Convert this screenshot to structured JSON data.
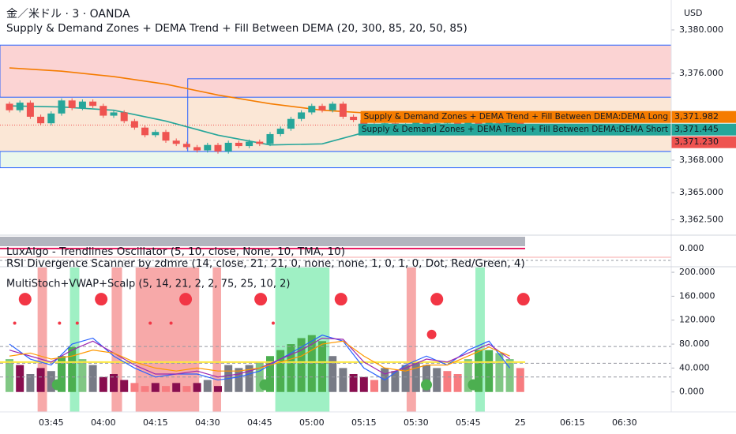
{
  "header": {
    "symbol": "金／米ドル · 3 · OANDA",
    "currency": "USD"
  },
  "chart_data": [
    {
      "type": "candlestick",
      "title": "Supply & Demand Zones + DEMA Trend + Fill Between DEMA (20, 300, 85, 20, 50, 85)",
      "open": [
        3373.2,
        3372.6,
        3373.3,
        3372.0,
        3371.4,
        3372.3,
        3373.5,
        3372.8,
        3373.4,
        3373.0,
        3372.1,
        3372.4,
        3371.6,
        3371.0,
        3370.3,
        3370.6,
        3369.8,
        3369.5,
        3369.2,
        3368.9,
        3369.4,
        3368.8,
        3369.6,
        3369.3,
        3369.7,
        3369.5,
        3370.4,
        3370.9,
        3371.8,
        3372.4,
        3373.0,
        3372.6,
        3373.2,
        3372.0,
        3371.7,
        3371.3,
        3370.6,
        3371.4,
        3370.8,
        3371.2,
        3371.5,
        3371.0,
        3371.4,
        3371.9,
        3371.2,
        3371.6,
        3371.3,
        3371.9,
        3371.4,
        3371.6
      ],
      "high": [
        3373.4,
        3373.5,
        3373.5,
        3372.2,
        3372.5,
        3373.7,
        3373.7,
        3373.6,
        3373.6,
        3373.2,
        3372.6,
        3372.6,
        3371.8,
        3371.2,
        3370.8,
        3370.8,
        3370.0,
        3369.7,
        3369.4,
        3369.6,
        3369.6,
        3369.8,
        3369.8,
        3369.9,
        3369.9,
        3370.6,
        3371.1,
        3372.0,
        3372.6,
        3373.2,
        3373.2,
        3373.4,
        3373.4,
        3372.2,
        3371.9,
        3371.5,
        3371.6,
        3371.6,
        3371.4,
        3371.7,
        3371.7,
        3371.6,
        3372.1,
        3372.1,
        3371.8,
        3371.8,
        3372.1,
        3372.1,
        3371.8,
        3371.8
      ],
      "low": [
        3372.4,
        3372.4,
        3371.8,
        3371.2,
        3371.2,
        3372.1,
        3372.6,
        3372.6,
        3372.8,
        3371.9,
        3371.9,
        3371.4,
        3370.8,
        3370.1,
        3370.1,
        3369.6,
        3369.3,
        3369.0,
        3368.7,
        3368.7,
        3368.6,
        3368.6,
        3369.1,
        3369.1,
        3369.3,
        3369.3,
        3370.2,
        3370.7,
        3371.6,
        3372.2,
        3372.4,
        3372.4,
        3371.8,
        3371.5,
        3371.1,
        3370.4,
        3370.4,
        3370.6,
        3370.6,
        3371.0,
        3370.8,
        3370.8,
        3371.2,
        3371.0,
        3371.0,
        3371.1,
        3371.1,
        3371.2,
        3371.2,
        3371.0
      ],
      "close": [
        3372.6,
        3373.3,
        3372.0,
        3371.4,
        3372.3,
        3373.5,
        3372.8,
        3373.4,
        3373.0,
        3372.1,
        3372.4,
        3371.6,
        3371.0,
        3370.3,
        3370.6,
        3369.8,
        3369.5,
        3369.2,
        3368.9,
        3369.4,
        3368.8,
        3369.6,
        3369.3,
        3369.7,
        3369.5,
        3370.4,
        3370.9,
        3371.8,
        3372.4,
        3373.0,
        3372.6,
        3373.2,
        3372.0,
        3371.7,
        3371.3,
        3370.6,
        3371.4,
        3370.8,
        3371.2,
        3371.5,
        3371.0,
        3371.4,
        3371.9,
        3371.2,
        3371.6,
        3371.3,
        3371.9,
        3371.4,
        3371.6,
        3371.23
      ],
      "up_color": "#26a69a",
      "down_color": "#ef5350",
      "ylim": [
        3361.16,
        3382.76
      ],
      "yticks": [
        {
          "value": 3380,
          "label": "3,380.000"
        },
        {
          "value": 3376,
          "label": "3,376.000"
        },
        {
          "value": 3368,
          "label": "3,368.000"
        },
        {
          "value": 3365,
          "label": "3,365.000"
        },
        {
          "value": 3362.5,
          "label": "3,362.500"
        }
      ],
      "zones": [
        {
          "top": 3373.8,
          "bottom": 3368.8,
          "from": -0.91,
          "fill": "#fbe7d6",
          "stroke": "none"
        },
        {
          "top": 3378.6,
          "bottom": 3373.8,
          "from": -0.91,
          "fill": "#fbd3d3",
          "stroke": "#2962ff"
        },
        {
          "top": 3368.8,
          "bottom": 3367.3,
          "from": -0.91,
          "fill": "#eaf7ec",
          "stroke": "#2962ff"
        },
        {
          "top": 3375.5,
          "bottom": 3368.8,
          "from": 17.1,
          "fill": "none",
          "stroke": "#2962ff"
        }
      ],
      "lines": [
        {
          "name": "Supply & Demand Zones + DEMA Trend + Fill Between DEMA:DEMA Long",
          "color": "#f57c00",
          "x": [
            0,
            5,
            10,
            15,
            20,
            25,
            30,
            35,
            40,
            45,
            49
          ],
          "values": [
            3376.5,
            3376.2,
            3375.7,
            3375.0,
            3374.0,
            3373.2,
            3372.6,
            3372.3,
            3372.1,
            3372.0,
            3372.0
          ],
          "last": {
            "value": 3371.982,
            "label": "3,371.982"
          }
        },
        {
          "name": "Supply & Demand Zones + DEMA Trend + Fill Between DEMA:DEMA Short",
          "color": "#26a69a",
          "x": [
            0,
            5,
            10,
            15,
            20,
            25,
            30,
            35,
            40,
            45,
            49
          ],
          "values": [
            3373.0,
            3372.9,
            3372.6,
            3371.6,
            3370.3,
            3369.4,
            3369.5,
            3370.8,
            3371.3,
            3371.3,
            3371.4
          ],
          "last": {
            "value": 3371.445,
            "label": "3,371.445"
          }
        }
      ],
      "last_price": {
        "value": 3371.23,
        "label": "3,371.230"
      },
      "x_labels": [
        "03:45",
        "04:00",
        "04:15",
        "04:30",
        "04:45",
        "05:00",
        "05:15",
        "05:30",
        "05:45",
        "25",
        "06:15",
        "06:30"
      ]
    },
    {
      "type": "oscillator",
      "title": "LuxAlgo - Trendlines Oscillator (5, 10, close, None, 10, TMA, 10)",
      "ylim": [
        -1,
        1
      ],
      "yticks": [
        {
          "value": 0,
          "label": "0.000"
        }
      ],
      "color": "#e91e63"
    },
    {
      "type": "oscillator",
      "title": "RSI Divergence Scanner by zdmre (14, close, 21, 21, 0, none, none, 1, 0, 1, 0, Dot, Red/Green, 4)"
    },
    {
      "type": "multistoch",
      "title": "MultiStoch+VWAP+Scalp (5, 14, 21, 2, 2, 75, 25, 10, 2)",
      "ylim": [
        -33.3,
        209.3
      ],
      "yticks": [
        {
          "value": 200,
          "label": "200.000"
        },
        {
          "value": 160,
          "label": "160.000"
        },
        {
          "value": 120,
          "label": "120.000"
        },
        {
          "value": 80,
          "label": "80.000"
        },
        {
          "value": 40,
          "label": "40.000"
        },
        {
          "value": 0,
          "label": "0.000"
        }
      ],
      "bands": [
        {
          "from": 2.7,
          "to": 3.6,
          "color": "#f7a9a9"
        },
        {
          "from": 9.8,
          "to": 10.8,
          "color": "#f7a9a9"
        },
        {
          "from": 12.1,
          "to": 18.2,
          "color": "#f7a9a9"
        },
        {
          "from": 19.5,
          "to": 20.3,
          "color": "#f7a9a9"
        },
        {
          "from": 38.1,
          "to": 39.0,
          "color": "#f7a9a9"
        },
        {
          "from": 5.8,
          "to": 6.7,
          "color": "#9ff0c4"
        },
        {
          "from": 25.5,
          "to": 30.7,
          "color": "#9ff0c4"
        },
        {
          "from": 44.7,
          "to": 45.6,
          "color": "#9ff0c4"
        }
      ],
      "histogram": {
        "values": [
          55,
          45,
          30,
          40,
          35,
          60,
          75,
          55,
          45,
          25,
          30,
          20,
          15,
          10,
          15,
          10,
          15,
          10,
          15,
          20,
          10,
          45,
          40,
          45,
          50,
          60,
          70,
          80,
          90,
          95,
          85,
          60,
          40,
          30,
          25,
          20,
          40,
          35,
          45,
          50,
          45,
          40,
          35,
          30,
          55,
          70,
          70,
          65,
          55,
          40
        ],
        "colors": [
          "#81c784",
          "#880e4f",
          "#787b86",
          "#880e4f",
          "#787b86",
          "#4caf50",
          "#4caf50",
          "#81c784",
          "#787b86",
          "#880e4f",
          "#880e4f",
          "#880e4f",
          "#f77c80",
          "#f77c80",
          "#880e4f",
          "#f77c80",
          "#880e4f",
          "#f77c80",
          "#880e4f",
          "#787b86",
          "#880e4f",
          "#787b86",
          "#787b86",
          "#787b86",
          "#81c784",
          "#4caf50",
          "#4caf50",
          "#4caf50",
          "#4caf50",
          "#4caf50",
          "#4caf50",
          "#787b86",
          "#787b86",
          "#880e4f",
          "#880e4f",
          "#f77c80",
          "#787b86",
          "#787b86",
          "#787b86",
          "#787b86",
          "#787b86",
          "#787b86",
          "#f77c80",
          "#f77c80",
          "#81c784",
          "#4caf50",
          "#4caf50",
          "#81c784",
          "#81c784",
          "#f77c80"
        ]
      },
      "levels": [
        {
          "value": 76,
          "color": "#9598a1",
          "dashed": true
        },
        {
          "value": 50,
          "color": "#ffeb3b",
          "dashed": false
        },
        {
          "value": 48,
          "color": "#9598a1",
          "dashed": true
        },
        {
          "value": 25,
          "color": "#9598a1",
          "dashed": true
        }
      ],
      "lines": [
        {
          "color": "#2962ff",
          "x": [
            0,
            2,
            4,
            6,
            8,
            10,
            12,
            14,
            16,
            18,
            20,
            22,
            24,
            26,
            28,
            30,
            32,
            34,
            36,
            38,
            40,
            42,
            44,
            46,
            48
          ],
          "values": [
            80,
            55,
            45,
            80,
            90,
            60,
            40,
            25,
            30,
            30,
            20,
            25,
            35,
            55,
            75,
            95,
            85,
            40,
            20,
            45,
            60,
            45,
            70,
            85,
            40
          ]
        },
        {
          "color": "#9c27b0",
          "x": [
            0,
            2,
            4,
            6,
            8,
            10,
            12,
            14,
            16,
            18,
            20,
            22,
            24,
            26,
            28,
            30,
            32,
            34,
            36,
            38,
            40,
            42,
            44,
            46,
            48
          ],
          "values": [
            70,
            60,
            50,
            70,
            85,
            65,
            45,
            30,
            30,
            35,
            25,
            30,
            40,
            55,
            70,
            90,
            88,
            50,
            30,
            40,
            55,
            50,
            65,
            80,
            55
          ]
        },
        {
          "color": "#ff9800",
          "x": [
            0,
            2,
            4,
            6,
            8,
            10,
            12,
            14,
            16,
            18,
            20,
            22,
            24,
            26,
            28,
            30,
            32,
            34,
            36,
            38,
            40,
            42,
            44,
            46,
            48
          ],
          "values": [
            60,
            65,
            55,
            60,
            70,
            65,
            50,
            40,
            35,
            40,
            35,
            35,
            40,
            50,
            60,
            80,
            85,
            60,
            40,
            35,
            45,
            45,
            60,
            75,
            60
          ]
        }
      ],
      "markers": [
        {
          "x": 1.5,
          "value": 155,
          "color": "#f23645",
          "size": 8
        },
        {
          "x": 8.8,
          "value": 155,
          "color": "#f23645",
          "size": 8
        },
        {
          "x": 16.9,
          "value": 155,
          "color": "#f23645",
          "size": 8
        },
        {
          "x": 24.1,
          "value": 155,
          "color": "#f23645",
          "size": 8
        },
        {
          "x": 31.8,
          "value": 155,
          "color": "#f23645",
          "size": 8
        },
        {
          "x": 41,
          "value": 155,
          "color": "#f23645",
          "size": 8
        },
        {
          "x": 49.3,
          "value": 155,
          "color": "#f23645",
          "size": 8
        },
        {
          "x": 4.6,
          "value": 12,
          "color": "#4caf50",
          "size": 7
        },
        {
          "x": 24.5,
          "value": 12,
          "color": "#4caf50",
          "size": 7
        },
        {
          "x": 40,
          "value": 12,
          "color": "#4caf50",
          "size": 7
        },
        {
          "x": 44.5,
          "value": 12,
          "color": "#4caf50",
          "size": 7
        },
        {
          "x": 0.5,
          "value": 115,
          "color": "#f23645",
          "size": 2
        },
        {
          "x": 4.8,
          "value": 115,
          "color": "#f23645",
          "size": 2
        },
        {
          "x": 6.5,
          "value": 115,
          "color": "#f23645",
          "size": 2
        },
        {
          "x": 13.5,
          "value": 115,
          "color": "#f23645",
          "size": 2
        },
        {
          "x": 15.5,
          "value": 115,
          "color": "#f23645",
          "size": 2
        },
        {
          "x": 25.3,
          "value": 115,
          "color": "#f23645",
          "size": 2
        },
        {
          "x": 40.5,
          "value": 96,
          "color": "#f23645",
          "size": 6
        }
      ]
    }
  ]
}
